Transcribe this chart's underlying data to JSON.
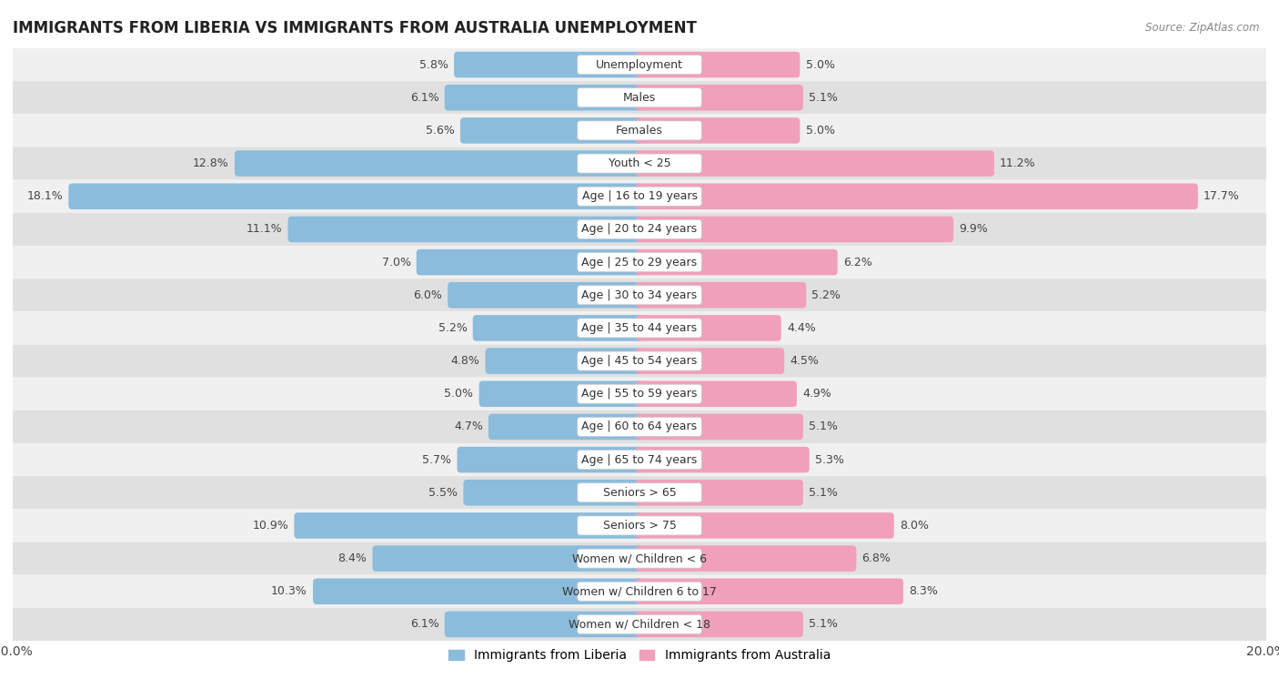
{
  "title": "IMMIGRANTS FROM LIBERIA VS IMMIGRANTS FROM AUSTRALIA UNEMPLOYMENT",
  "source": "Source: ZipAtlas.com",
  "categories": [
    "Unemployment",
    "Males",
    "Females",
    "Youth < 25",
    "Age | 16 to 19 years",
    "Age | 20 to 24 years",
    "Age | 25 to 29 years",
    "Age | 30 to 34 years",
    "Age | 35 to 44 years",
    "Age | 45 to 54 years",
    "Age | 55 to 59 years",
    "Age | 60 to 64 years",
    "Age | 65 to 74 years",
    "Seniors > 65",
    "Seniors > 75",
    "Women w/ Children < 6",
    "Women w/ Children 6 to 17",
    "Women w/ Children < 18"
  ],
  "liberia_values": [
    5.8,
    6.1,
    5.6,
    12.8,
    18.1,
    11.1,
    7.0,
    6.0,
    5.2,
    4.8,
    5.0,
    4.7,
    5.7,
    5.5,
    10.9,
    8.4,
    10.3,
    6.1
  ],
  "australia_values": [
    5.0,
    5.1,
    5.0,
    11.2,
    17.7,
    9.9,
    6.2,
    5.2,
    4.4,
    4.5,
    4.9,
    5.1,
    5.3,
    5.1,
    8.0,
    6.8,
    8.3,
    5.1
  ],
  "liberia_color": "#8BBCDC",
  "australia_color": "#F0A0BB",
  "liberia_color_dark": "#6A9FC4",
  "australia_color_dark": "#E07898",
  "legend_liberia": "Immigrants from Liberia",
  "legend_australia": "Immigrants from Australia",
  "x_max": 20.0,
  "row_bg_light": "#f0f0f0",
  "row_bg_dark": "#e0e0e0",
  "title_fontsize": 12,
  "label_fontsize": 9,
  "value_fontsize": 9,
  "bar_height": 0.55
}
